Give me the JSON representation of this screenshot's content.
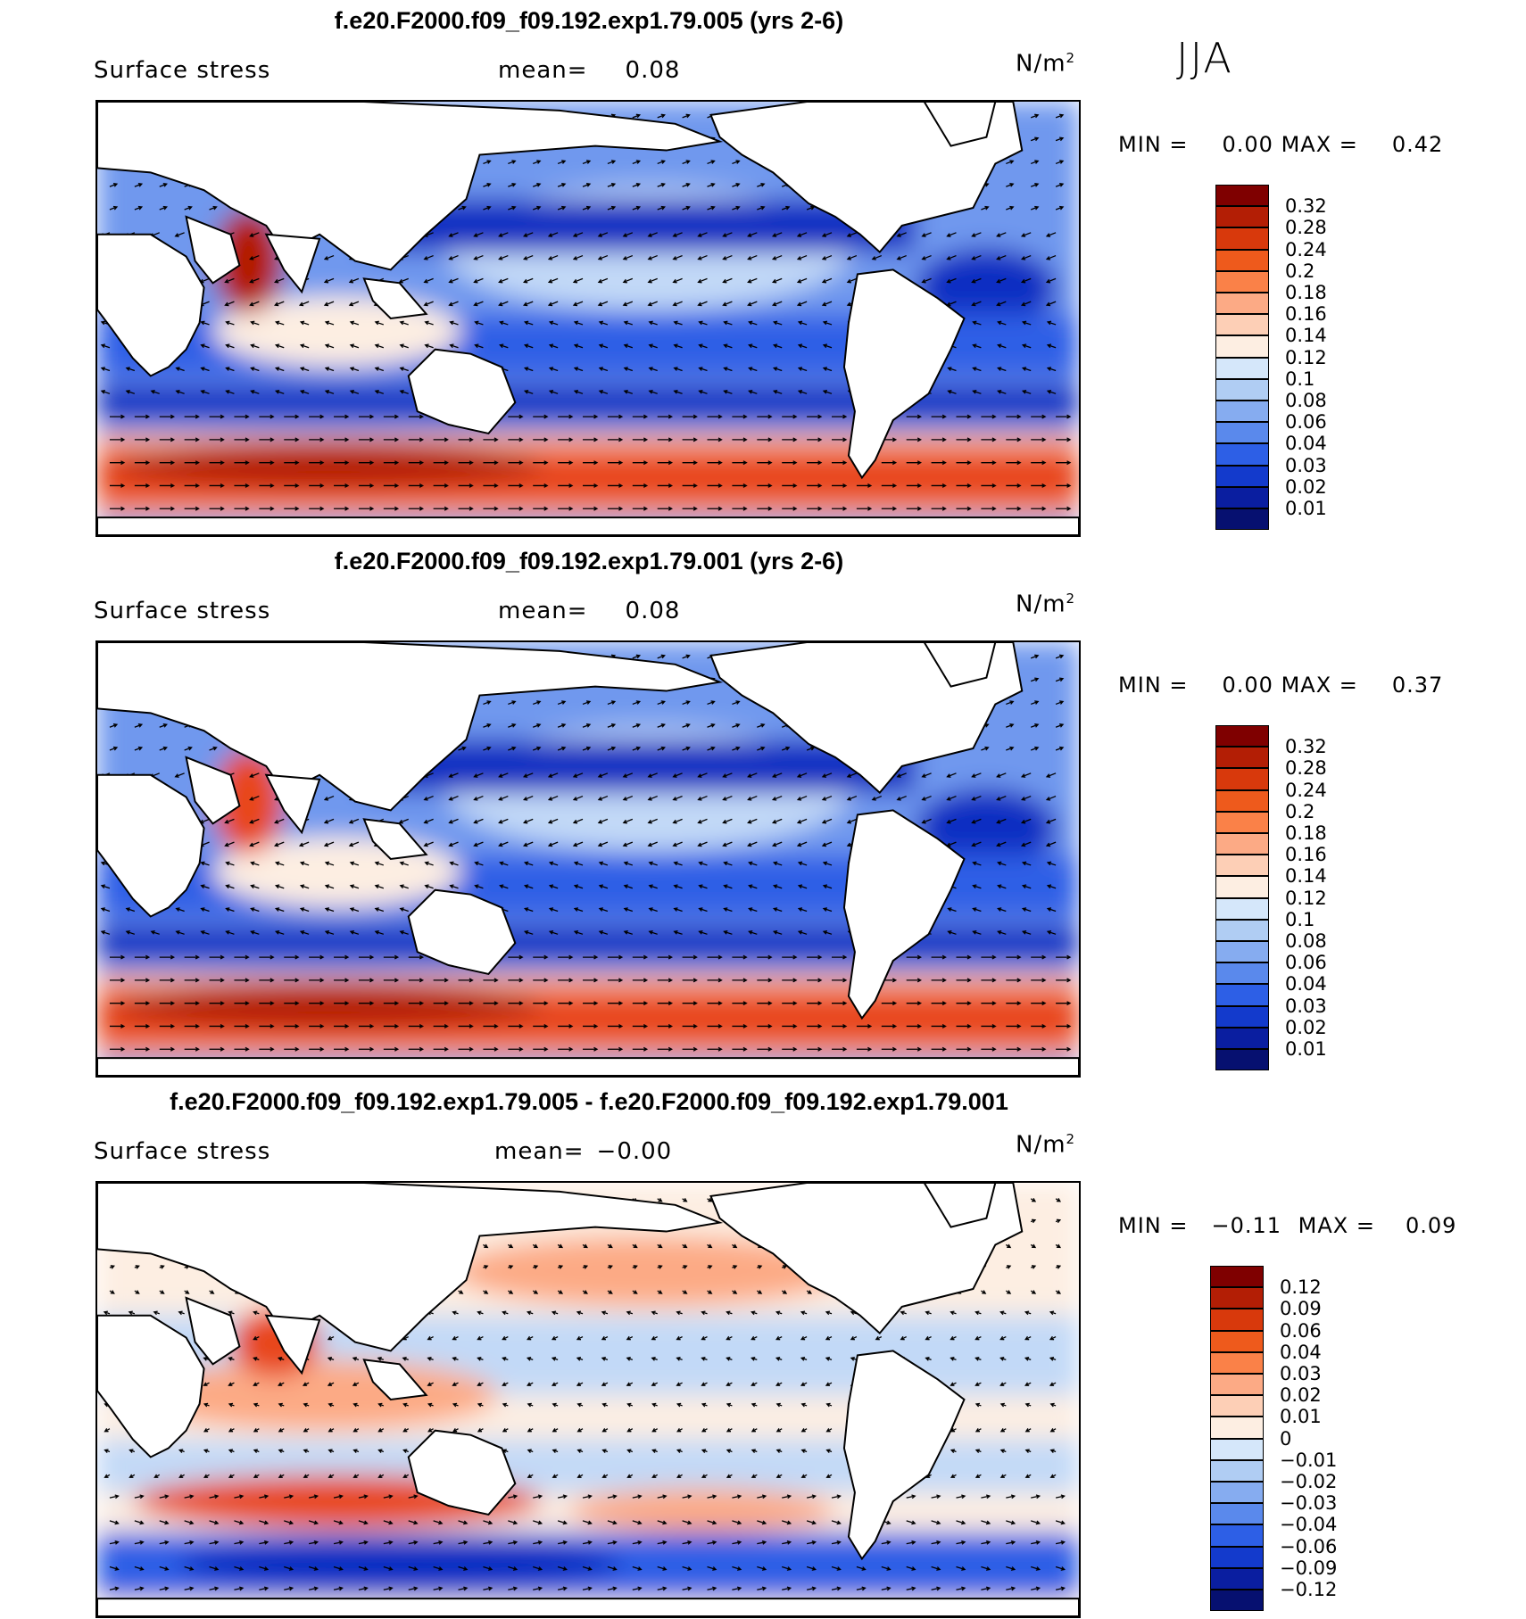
{
  "season": "JJA",
  "panels": [
    {
      "title": "f.e20.F2000.f09_f09.192.exp1.79.005 (yrs 2-6)",
      "variable": "Surface stress",
      "mean_label": "mean=",
      "mean_value": "0.08",
      "unit": "N/m",
      "unit_exp": "2",
      "min_label": "MIN =",
      "min_value": "0.00",
      "max_label": "MAX =",
      "max_value": "0.42",
      "colorbar": {
        "labels": [
          "0.32",
          "0.28",
          "0.24",
          "0.2",
          "0.18",
          "0.16",
          "0.14",
          "0.12",
          "0.1",
          "0.08",
          "0.06",
          "0.04",
          "0.03",
          "0.02",
          "0.01"
        ],
        "colors": [
          "#7f0000",
          "#b31e05",
          "#d8390c",
          "#ee5a1c",
          "#fa8148",
          "#fcaa85",
          "#fdcfb6",
          "#fdeee2",
          "#d5e7fa",
          "#b0cdf3",
          "#86acf0",
          "#5a89ec",
          "#2d5fe6",
          "#133acc",
          "#0a1ea0",
          "#061070"
        ]
      }
    },
    {
      "title": "f.e20.F2000.f09_f09.192.exp1.79.001 (yrs 2-6)",
      "variable": "Surface stress",
      "mean_label": "mean=",
      "mean_value": "0.08",
      "unit": "N/m",
      "unit_exp": "2",
      "min_label": "MIN =",
      "min_value": "0.00",
      "max_label": "MAX =",
      "max_value": "0.37",
      "colorbar": {
        "labels": [
          "0.32",
          "0.28",
          "0.24",
          "0.2",
          "0.18",
          "0.16",
          "0.14",
          "0.12",
          "0.1",
          "0.08",
          "0.06",
          "0.04",
          "0.03",
          "0.02",
          "0.01"
        ],
        "colors": [
          "#7f0000",
          "#b31e05",
          "#d8390c",
          "#ee5a1c",
          "#fa8148",
          "#fcaa85",
          "#fdcfb6",
          "#fdeee2",
          "#d5e7fa",
          "#b0cdf3",
          "#86acf0",
          "#5a89ec",
          "#2d5fe6",
          "#133acc",
          "#0a1ea0",
          "#061070"
        ]
      }
    },
    {
      "title": "f.e20.F2000.f09_f09.192.exp1.79.005 - f.e20.F2000.f09_f09.192.exp1.79.001",
      "variable": "Surface stress",
      "mean_label": "mean=",
      "mean_value": "−0.00",
      "unit": "N/m",
      "unit_exp": "2",
      "min_label": "MIN =",
      "min_value": "−0.11",
      "max_label": "MAX =",
      "max_value": "0.09",
      "colorbar": {
        "labels": [
          "0.12",
          "0.09",
          "0.06",
          "0.04",
          "0.03",
          "0.02",
          "0.01",
          "0",
          "−0.01",
          "−0.02",
          "−0.03",
          "−0.04",
          "−0.06",
          "−0.09",
          "−0.12"
        ],
        "colors": [
          "#7f0000",
          "#b31e05",
          "#d8390c",
          "#ee5a1c",
          "#fa8148",
          "#fcaa85",
          "#fdcfb6",
          "#fdeee2",
          "#d5e7fa",
          "#b0cdf3",
          "#86acf0",
          "#5a89ec",
          "#2d5fe6",
          "#133acc",
          "#0a1ea0",
          "#061070"
        ]
      }
    }
  ],
  "palette": {
    "deep_blue": "#0b2fc2",
    "blue": "#2d5fe6",
    "mid_blue": "#6f98ee",
    "light_blue": "#c2d9f7",
    "pale": "#fdeee2",
    "light_red": "#fcaa85",
    "red": "#e8461b",
    "dark_red": "#b31e05",
    "land": "#ffffff",
    "coast": "#000000"
  }
}
